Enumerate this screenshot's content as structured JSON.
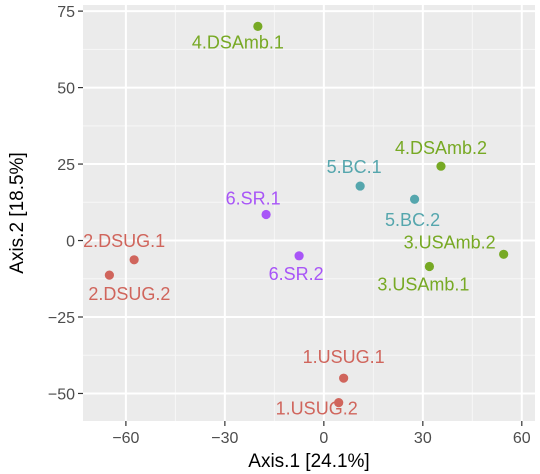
{
  "chart_data": {
    "type": "scatter",
    "xlabel": "Axis.1   [24.1%]",
    "ylabel": "Axis.2   [18.5%]",
    "xlim": [
      -73,
      64
    ],
    "ylim": [
      -59,
      77
    ],
    "xticks": [
      -60,
      -30,
      0,
      30,
      60
    ],
    "yticks": [
      -50,
      -25,
      0,
      25,
      50,
      75
    ],
    "grid": true,
    "legend": "none",
    "group_colors": {
      "DSUG": "#d0655c",
      "USUG": "#d0655c",
      "DSAmb": "#77a924",
      "USAmb": "#77a924",
      "BC": "#55a6ad",
      "SR": "#a855f7"
    },
    "points": [
      {
        "label": "4.DSAmb.1",
        "group": "DSAmb",
        "x": -20,
        "y": 70
      },
      {
        "label": "4.DSAmb.2",
        "group": "DSAmb",
        "x": 35.5,
        "y": 24.3
      },
      {
        "label": "3.USAmb.2",
        "group": "USAmb",
        "x": 54.5,
        "y": -4.5
      },
      {
        "label": "3.USAmb.1",
        "group": "USAmb",
        "x": 32,
        "y": -8.5
      },
      {
        "label": "5.BC.1",
        "group": "BC",
        "x": 11,
        "y": 17.8
      },
      {
        "label": "5.BC.2",
        "group": "BC",
        "x": 27.5,
        "y": 13.5
      },
      {
        "label": "6.SR.1",
        "group": "SR",
        "x": -17.5,
        "y": 8.5
      },
      {
        "label": "6.SR.2",
        "group": "SR",
        "x": -7.5,
        "y": -5
      },
      {
        "label": "2.DSUG.1",
        "group": "DSUG",
        "x": -57.5,
        "y": -6.3
      },
      {
        "label": "2.DSUG.2",
        "group": "DSUG",
        "x": -65,
        "y": -11.3
      },
      {
        "label": "1.USUG.1",
        "group": "USUG",
        "x": 6,
        "y": -45
      },
      {
        "label": "1.USUG.2",
        "group": "USUG",
        "x": 4.5,
        "y": -53
      }
    ]
  }
}
